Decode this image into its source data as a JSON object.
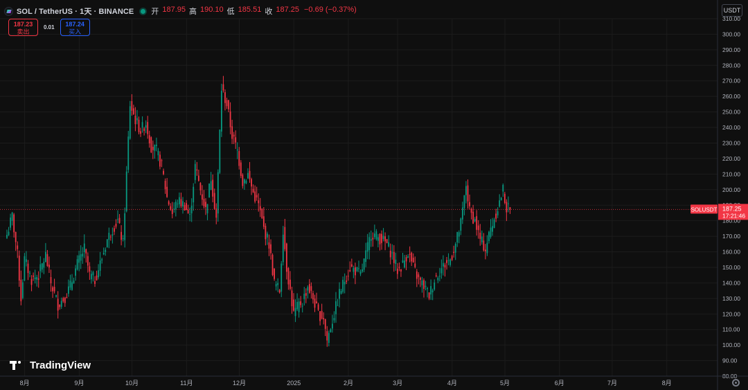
{
  "header": {
    "symbol": "SOL / TetherUS · 1天 · BINANCE",
    "open_label": "开",
    "open": "187.95",
    "high_label": "高",
    "high": "190.10",
    "low_label": "低",
    "low": "185.51",
    "close_label": "收",
    "close": "187.25",
    "change": "−0.69 (−0.37%)"
  },
  "trade": {
    "sell_price": "187.23",
    "sell_label": "卖出",
    "spread": "0.01",
    "buy_price": "187.24",
    "buy_label": "买入"
  },
  "currency_selector": "USDT",
  "logo_text": "TradingView",
  "price_tag": {
    "symbol": "SOLUSDT",
    "price": "187.25",
    "countdown": "17:21:46"
  },
  "colors": {
    "up": "#089981",
    "down": "#f23645",
    "background": "#0f0f0f",
    "grid": "#1c1c1c",
    "axis_text": "#b2b5be"
  },
  "icons": [
    "solana-coin-icon",
    "live-dot-icon",
    "tradingview-logo-icon",
    "settings-gear-icon"
  ],
  "chart_data": {
    "type": "candlestick",
    "interval": "1天",
    "ylim": [
      80,
      310
    ],
    "yticks": [
      80,
      90,
      100,
      110,
      120,
      130,
      140,
      150,
      160,
      170,
      180,
      190,
      200,
      210,
      220,
      230,
      240,
      250,
      260,
      270,
      280,
      290,
      300,
      310
    ],
    "y_tick_labels": [
      "80.00",
      "90.00",
      "100.00",
      "110.00",
      "120.00",
      "130.00",
      "140.00",
      "150.00",
      "160.00",
      "170.00",
      "180.00",
      "190.00",
      "200.00",
      "210.00",
      "220.00",
      "230.00",
      "240.00",
      "250.00",
      "260.00",
      "270.00",
      "280.00",
      "290.00",
      "300.00",
      "310.00"
    ],
    "x_labels": [
      "8月",
      "9月",
      "10月",
      "11月",
      "12月",
      "2025",
      "2月",
      "3月",
      "4月",
      "5月",
      "6月",
      "7月",
      "8月"
    ],
    "x_label_index": [
      3,
      34,
      64,
      95,
      125,
      156,
      187,
      215,
      246,
      276,
      307,
      337,
      368
    ],
    "last_price": 187.25,
    "close_path": [
      [
        0,
        171
      ],
      [
        3,
        183
      ],
      [
        6,
        158
      ],
      [
        8,
        130
      ],
      [
        10,
        155
      ],
      [
        14,
        142
      ],
      [
        18,
        145
      ],
      [
        22,
        158
      ],
      [
        25,
        140
      ],
      [
        29,
        126
      ],
      [
        33,
        131
      ],
      [
        36,
        138
      ],
      [
        40,
        152
      ],
      [
        44,
        162
      ],
      [
        47,
        145
      ],
      [
        50,
        142
      ],
      [
        54,
        156
      ],
      [
        57,
        168
      ],
      [
        60,
        175
      ],
      [
        63,
        180
      ],
      [
        66,
        165
      ],
      [
        70,
        255
      ],
      [
        73,
        245
      ],
      [
        76,
        238
      ],
      [
        79,
        243
      ],
      [
        82,
        228
      ],
      [
        85,
        225
      ],
      [
        88,
        215
      ],
      [
        91,
        195
      ],
      [
        94,
        185
      ],
      [
        97,
        193
      ],
      [
        101,
        190
      ],
      [
        104,
        182
      ],
      [
        107,
        215
      ],
      [
        110,
        200
      ],
      [
        113,
        187
      ],
      [
        116,
        208
      ],
      [
        119,
        182
      ],
      [
        122,
        265
      ],
      [
        125,
        255
      ],
      [
        128,
        235
      ],
      [
        131,
        225
      ],
      [
        134,
        205
      ],
      [
        137,
        210
      ],
      [
        140,
        198
      ],
      [
        143,
        190
      ],
      [
        146,
        175
      ],
      [
        149,
        165
      ],
      [
        152,
        140
      ],
      [
        155,
        135
      ],
      [
        157,
        175
      ],
      [
        159,
        150
      ],
      [
        161,
        135
      ],
      [
        163,
        120
      ],
      [
        166,
        126
      ],
      [
        168,
        128
      ],
      [
        171,
        138
      ],
      [
        174,
        130
      ],
      [
        177,
        120
      ],
      [
        180,
        118
      ],
      [
        182,
        103
      ],
      [
        184,
        112
      ],
      [
        186,
        120
      ],
      [
        189,
        133
      ],
      [
        192,
        142
      ],
      [
        195,
        150
      ],
      [
        198,
        148
      ],
      [
        201,
        145
      ],
      [
        204,
        158
      ],
      [
        207,
        172
      ],
      [
        210,
        170
      ],
      [
        213,
        168
      ],
      [
        216,
        165
      ],
      [
        219,
        158
      ],
      [
        222,
        148
      ],
      [
        225,
        152
      ],
      [
        228,
        160
      ],
      [
        231,
        150
      ],
      [
        234,
        142
      ],
      [
        237,
        138
      ],
      [
        240,
        132
      ],
      [
        243,
        142
      ],
      [
        246,
        148
      ],
      [
        249,
        152
      ],
      [
        252,
        155
      ],
      [
        255,
        165
      ],
      [
        258,
        178
      ],
      [
        261,
        203
      ],
      [
        263,
        186
      ],
      [
        266,
        180
      ],
      [
        269,
        168
      ],
      [
        272,
        162
      ],
      [
        275,
        175
      ],
      [
        278,
        185
      ],
      [
        280,
        192
      ],
      [
        282,
        200
      ],
      [
        284,
        188
      ],
      [
        286,
        187
      ]
    ]
  }
}
